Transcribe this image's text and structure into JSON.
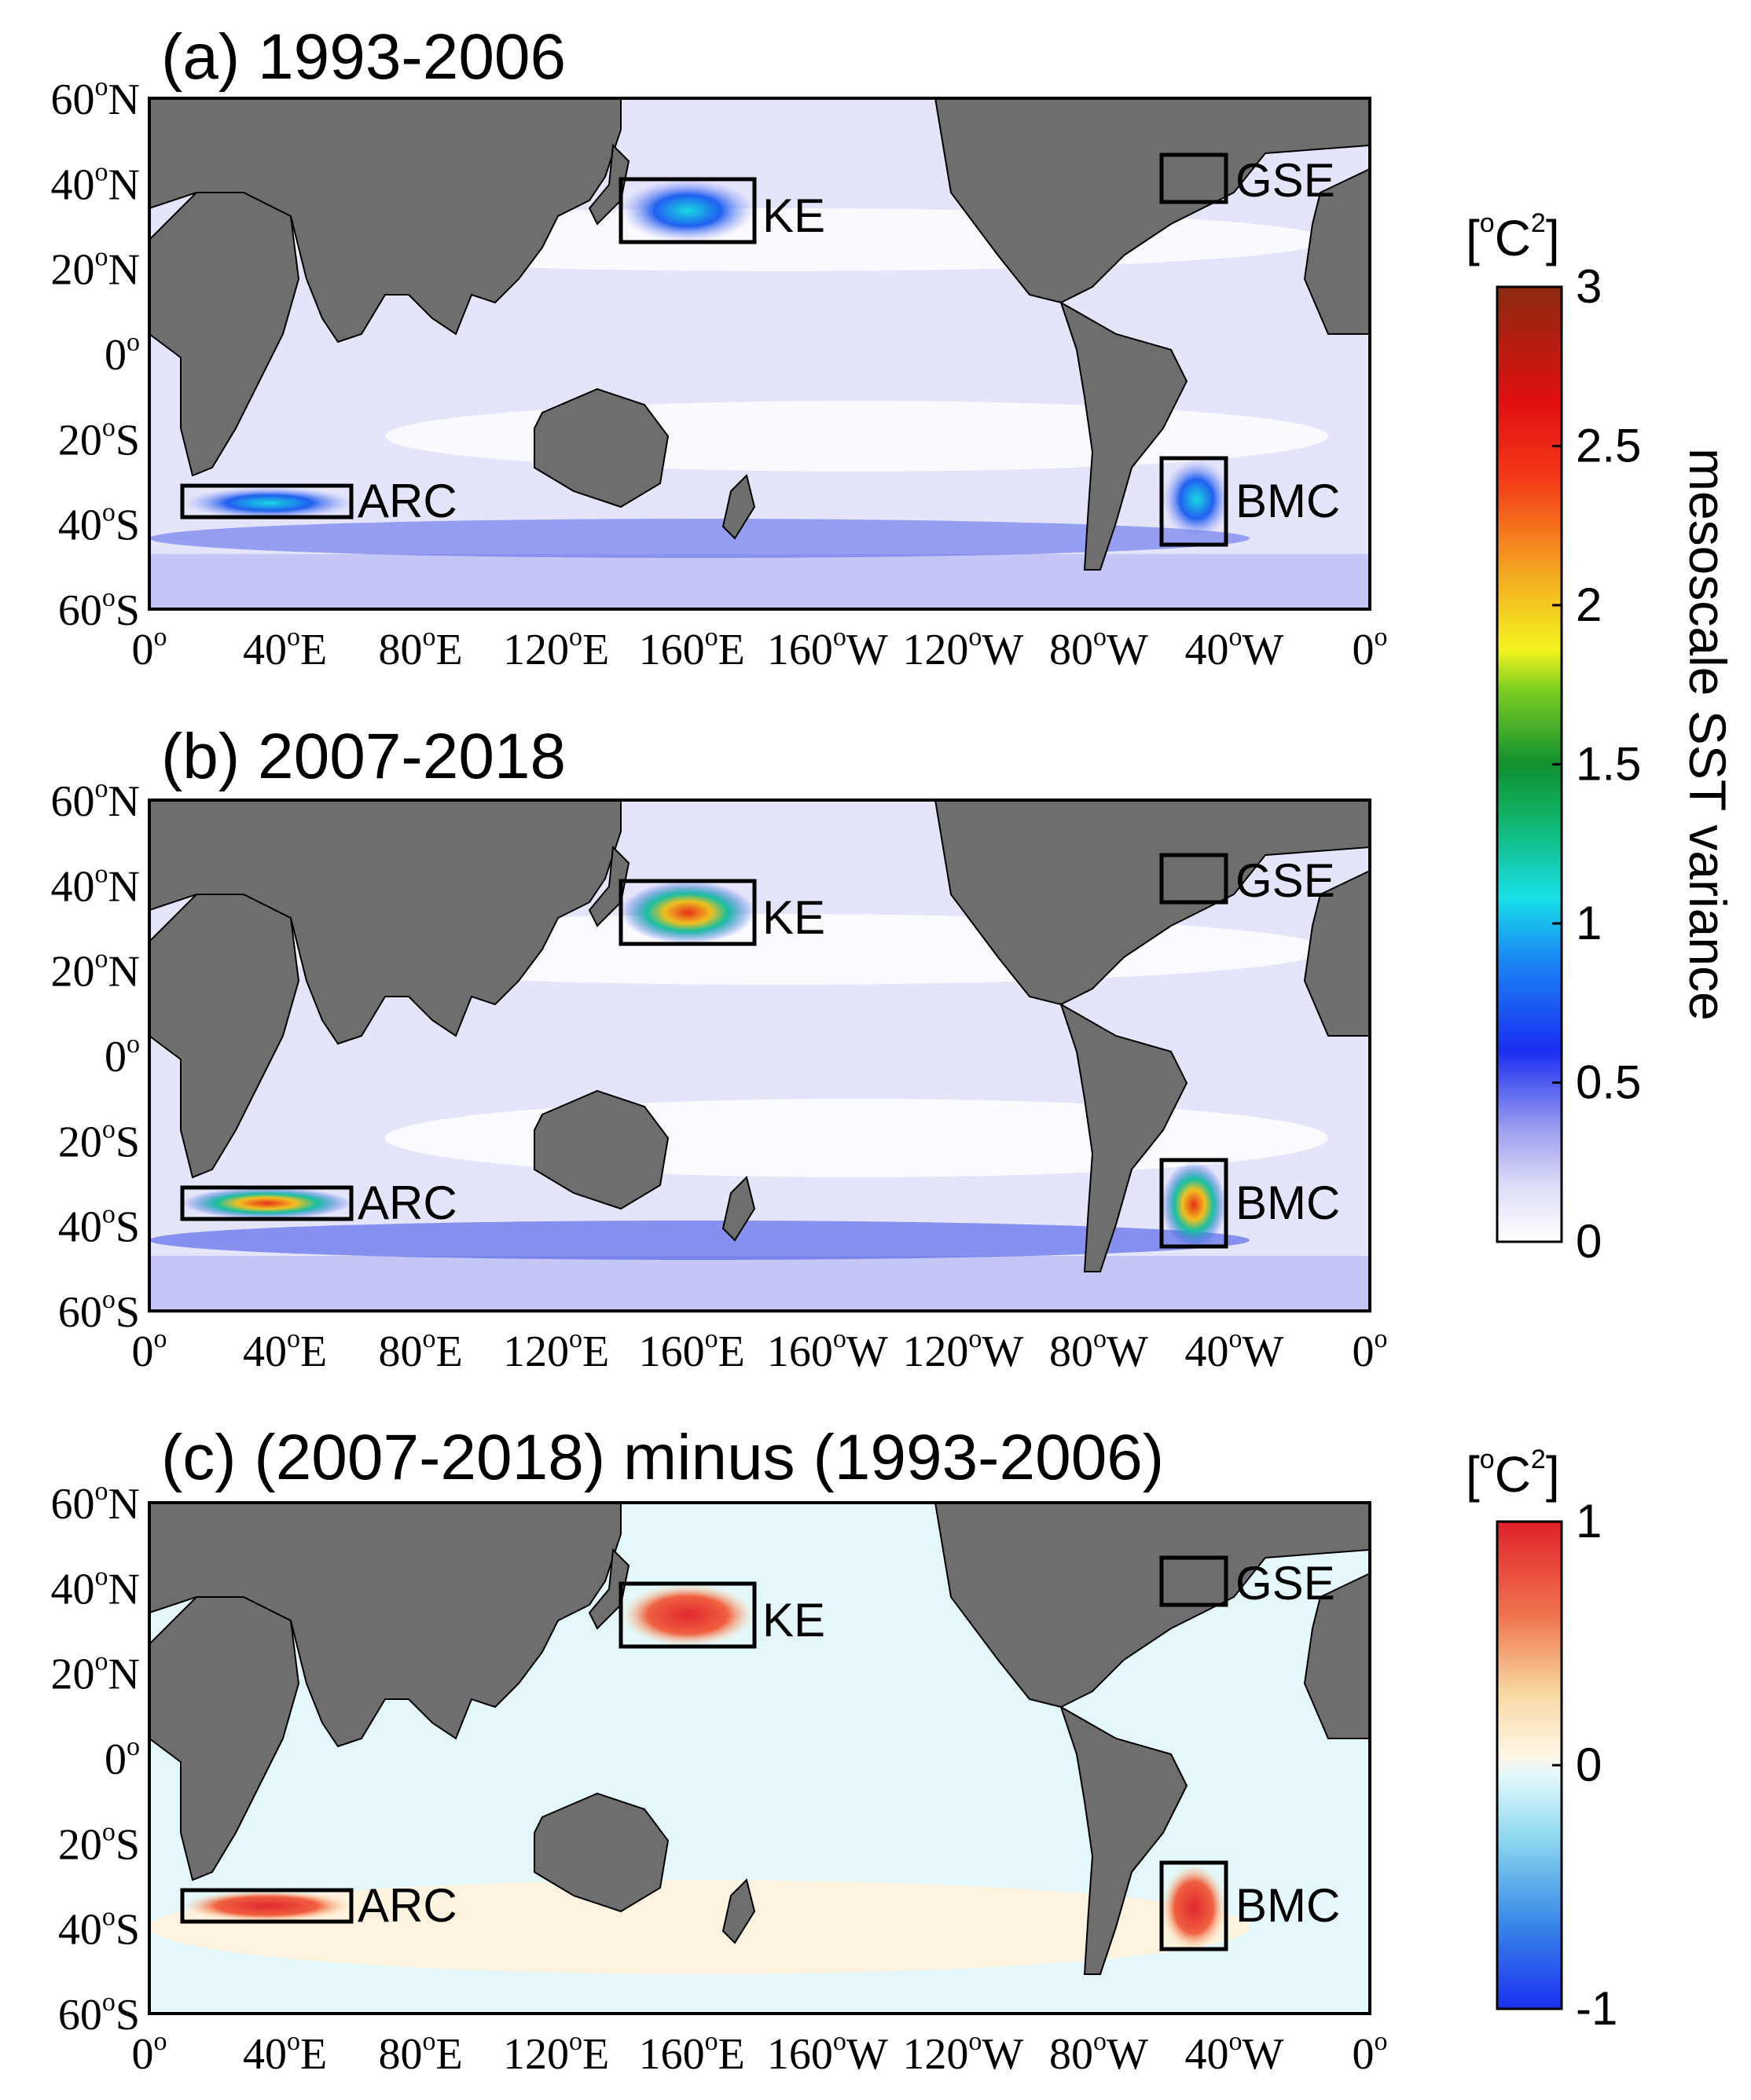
{
  "figure": {
    "panels": [
      {
        "title": "(a) 1993-2006",
        "regions": [
          "KE",
          "GSE",
          "ARC",
          "BMC"
        ]
      },
      {
        "title": "(b) 2007-2018",
        "regions": [
          "KE",
          "GSE",
          "ARC",
          "BMC"
        ]
      },
      {
        "title": "(c) (2007-2018) minus (1993-2006)",
        "regions": [
          "KE",
          "GSE",
          "ARC",
          "BMC"
        ]
      }
    ],
    "lat_ticks": [
      {
        "num": "60",
        "hemi": "N"
      },
      {
        "num": "40",
        "hemi": "N"
      },
      {
        "num": "20",
        "hemi": "N"
      },
      {
        "num": "0",
        "hemi": ""
      },
      {
        "num": "20",
        "hemi": "S"
      },
      {
        "num": "40",
        "hemi": "S"
      },
      {
        "num": "60",
        "hemi": "S"
      }
    ],
    "lon_ticks": [
      {
        "num": "0",
        "hemi": ""
      },
      {
        "num": "40",
        "hemi": "E"
      },
      {
        "num": "80",
        "hemi": "E"
      },
      {
        "num": "120",
        "hemi": "E"
      },
      {
        "num": "160",
        "hemi": "E"
      },
      {
        "num": "160",
        "hemi": "W"
      },
      {
        "num": "120",
        "hemi": "W"
      },
      {
        "num": "80",
        "hemi": "W"
      },
      {
        "num": "40",
        "hemi": "W"
      },
      {
        "num": "0",
        "hemi": ""
      }
    ],
    "degree_symbol": "o",
    "colorbar_top": {
      "unit_base": "[",
      "unit_sup1": "o",
      "unit_c": "C",
      "unit_sup2": "2",
      "unit_close": "]",
      "title": "mesoscale SST variance",
      "ticks": [
        "3",
        "2.5",
        "2",
        "1.5",
        "1",
        "0.5",
        "0"
      ],
      "range": [
        0,
        3
      ]
    },
    "colorbar_bottom": {
      "unit_base": "[",
      "unit_sup1": "o",
      "unit_c": "C",
      "unit_sup2": "2",
      "unit_close": "]",
      "ticks": [
        "1",
        "0",
        "-1"
      ],
      "range": [
        -1,
        1
      ]
    },
    "colors": {
      "land": "#6e6e6e",
      "ocean_variance_low": "#e4e4fb",
      "ocean_variance_mid": "#9aa0f2",
      "ocean_variance_high": "#3048e6",
      "ocean_diff_zero": "#e4f8fb",
      "diff_positive": "#e0282e",
      "box": "#000000"
    }
  }
}
